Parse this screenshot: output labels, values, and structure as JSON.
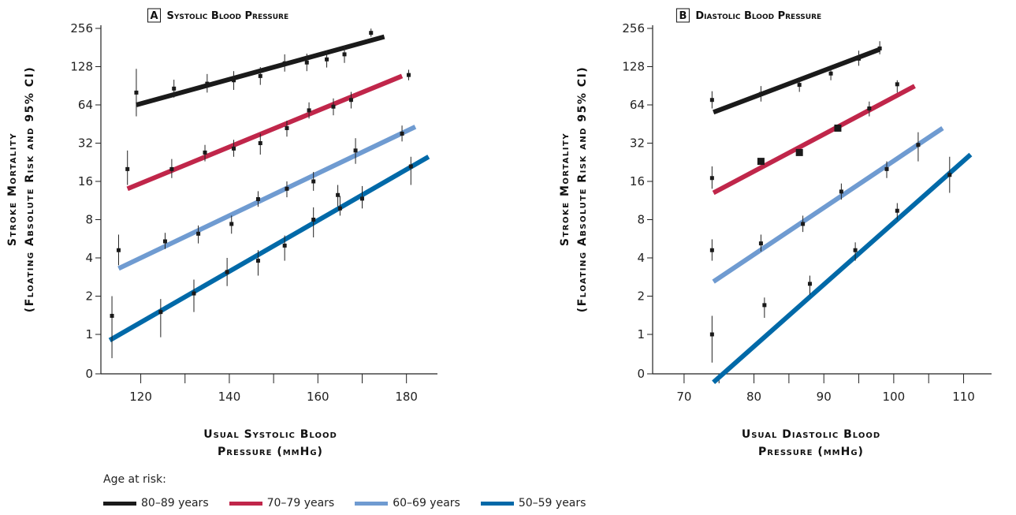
{
  "legend": {
    "title": "Age at risk:",
    "items": [
      {
        "label": "80–89 years",
        "color": "#1a1a1a"
      },
      {
        "label": "70–79 years",
        "color": "#c0264a"
      },
      {
        "label": "60–69 years",
        "color": "#6f9bd1"
      },
      {
        "label": "50–59 years",
        "color": "#0069a8"
      }
    ]
  },
  "chart_data": [
    {
      "type": "scatter",
      "panel_letter": "A",
      "title": "Systolic Blood Pressure",
      "xlabel": [
        "Usual Systolic Blood",
        "Pressure (mmHg)"
      ],
      "ylabel": [
        "Stroke Mortality",
        "(Floating Absolute Risk and 95% CI)"
      ],
      "y_scale": "log2",
      "x_ticks": [
        120,
        140,
        160,
        180
      ],
      "y_ticks": [
        "0",
        "1",
        "2",
        "4",
        "8",
        "16",
        "32",
        "64",
        "128",
        "256"
      ],
      "xlim": [
        111,
        187
      ],
      "series": [
        {
          "group": "80–89 years",
          "color": "#1a1a1a",
          "fit": [
            [
              119,
              64
            ],
            [
              175,
              220
            ]
          ],
          "x": [
            119,
            127.5,
            135,
            141,
            147,
            152.5,
            157.5,
            162,
            166,
            172,
            180.5
          ],
          "y": [
            80,
            86,
            94,
            100,
            108,
            136,
            138,
            146,
            160,
            236,
            110
          ],
          "lo": [
            52,
            73,
            80,
            84,
            92,
            117,
            118,
            126,
            137,
            220,
            100
          ],
          "hi": [
            123,
            101,
            112,
            118,
            127,
            160,
            162,
            170,
            188,
            255,
            121
          ]
        },
        {
          "group": "70–79 years",
          "color": "#c0264a",
          "fit": [
            [
              117,
              14
            ],
            [
              179,
              108
            ]
          ],
          "x": [
            117,
            127,
            134.5,
            141,
            147,
            153,
            158,
            163.5,
            167.5
          ],
          "y": [
            20,
            20,
            27,
            29,
            32,
            42,
            58,
            62,
            70
          ],
          "lo": [
            15,
            17,
            23,
            25,
            26,
            36,
            50,
            53,
            60
          ],
          "hi": [
            28,
            24,
            31,
            34,
            38,
            48,
            67,
            72,
            81
          ]
        },
        {
          "group": "60–69 years",
          "color": "#6f9bd1",
          "fit": [
            [
              115,
              3.3
            ],
            [
              182,
              43
            ]
          ],
          "x": [
            115,
            125.5,
            133,
            140.5,
            146.5,
            153,
            159,
            164.5,
            168.5,
            179
          ],
          "y": [
            4.6,
            5.4,
            6.2,
            7.4,
            11.6,
            14,
            16,
            12.5,
            28,
            38
          ],
          "lo": [
            3.5,
            4.7,
            5.2,
            6.2,
            10.1,
            12,
            13.5,
            10,
            22,
            33
          ],
          "hi": [
            6.1,
            6.3,
            7.2,
            8.6,
            13.4,
            16,
            19,
            15,
            35,
            44
          ]
        },
        {
          "group": "50–59 years",
          "color": "#0069a8",
          "fit": [
            [
              113,
              0.9
            ],
            [
              185,
              25
            ]
          ],
          "x": [
            113.5,
            124.5,
            132,
            139.5,
            146.5,
            152.5,
            159,
            165,
            170,
            181
          ],
          "y": [
            1.4,
            1.5,
            2.1,
            3.1,
            3.8,
            5,
            8,
            9.8,
            11.7,
            21
          ],
          "lo": [
            0.65,
            0.95,
            1.5,
            2.4,
            2.9,
            3.8,
            5.8,
            8.6,
            9.8,
            15
          ],
          "hi": [
            2,
            1.9,
            2.7,
            4,
            4.6,
            6,
            10,
            12.3,
            14.7,
            25
          ]
        }
      ]
    },
    {
      "type": "scatter",
      "panel_letter": "B",
      "title": "Diastolic Blood Pressure",
      "xlabel": [
        "Usual Diastolic Blood",
        "Pressure (mmHg)"
      ],
      "ylabel": [
        "Stroke Mortality",
        "(Floating Absolute Risk and 95% CI)"
      ],
      "y_scale": "log2",
      "x_ticks": [
        70,
        80,
        90,
        100,
        110
      ],
      "y_ticks": [
        "0",
        "1",
        "2",
        "4",
        "8",
        "16",
        "32",
        "64",
        "128",
        "256"
      ],
      "xlim": [
        65.5,
        114
      ],
      "series": [
        {
          "group": "80–89 years",
          "color": "#1a1a1a",
          "fit": [
            [
              74.2,
              56
            ],
            [
              98,
              175
            ]
          ],
          "x": [
            74,
            81,
            86.5,
            91,
            95,
            98,
            100.5
          ],
          "y": [
            70,
            78,
            92,
            113,
            148,
            178,
            93
          ],
          "lo": [
            60,
            68,
            81,
            100,
            130,
            160,
            80
          ],
          "hi": [
            82,
            90,
            101,
            123,
            171,
            203,
            100
          ]
        },
        {
          "group": "70–79 years",
          "color": "#c0264a",
          "fit": [
            [
              74.2,
              13
            ],
            [
              103,
              90
            ]
          ],
          "x": [
            74,
            81,
            86.5,
            92,
            96.5
          ],
          "y": [
            17,
            23,
            27,
            42,
            60
          ],
          "lo": [
            14,
            23,
            27,
            42,
            52
          ],
          "hi": [
            21,
            23,
            27,
            42,
            68
          ]
        },
        {
          "group": "60–69 years",
          "color": "#6f9bd1",
          "fit": [
            [
              74.2,
              2.6
            ],
            [
              107,
              42
            ]
          ],
          "x": [
            74,
            81,
            87,
            92.5,
            99,
            103.5
          ],
          "y": [
            4.6,
            5.2,
            7.4,
            13.3,
            20,
            31
          ],
          "lo": [
            3.8,
            4.5,
            6.4,
            11.5,
            17,
            23
          ],
          "hi": [
            5.6,
            6.1,
            8.6,
            15.4,
            23,
            39
          ]
        },
        {
          "group": "50–59 years",
          "color": "#0069a8",
          "fit": [
            [
              74.2,
              0.42
            ],
            [
              111,
              26
            ]
          ],
          "x": [
            74,
            81.5,
            88,
            94.5,
            100.5,
            108
          ],
          "y": [
            1,
            1.7,
            2.5,
            4.6,
            9.4,
            18
          ],
          "lo": [
            0.6,
            1.35,
            2.05,
            3.8,
            8,
            13
          ],
          "hi": [
            1.4,
            1.95,
            2.9,
            5.3,
            10.8,
            25
          ]
        }
      ]
    }
  ]
}
